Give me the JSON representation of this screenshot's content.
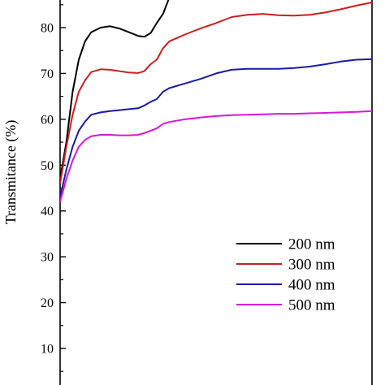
{
  "chart_data": {
    "type": "line",
    "title": "",
    "xlabel": "",
    "ylabel": "Transmitance (%)",
    "x_range": [
      0,
      100
    ],
    "ylim": [
      0,
      87
    ],
    "yticks": [
      10,
      20,
      30,
      40,
      50,
      60,
      70,
      80
    ],
    "grid": false,
    "legend_position": "bottom-right",
    "series": [
      {
        "name": "200 nm",
        "color": "#000000",
        "points": [
          [
            0,
            47
          ],
          [
            2,
            55
          ],
          [
            4,
            66
          ],
          [
            6,
            73
          ],
          [
            8,
            77
          ],
          [
            10,
            79
          ],
          [
            13,
            80
          ],
          [
            16,
            80.3
          ],
          [
            19,
            79.8
          ],
          [
            22,
            79
          ],
          [
            25,
            78.2
          ],
          [
            27,
            78
          ],
          [
            29,
            78.8
          ],
          [
            31,
            81
          ],
          [
            33,
            83
          ],
          [
            35,
            86.5
          ],
          [
            37,
            90
          ]
        ]
      },
      {
        "name": "300 nm",
        "color": "#cc1f1f",
        "points": [
          [
            0,
            46
          ],
          [
            2,
            54
          ],
          [
            4,
            61
          ],
          [
            6,
            66
          ],
          [
            8,
            68.5
          ],
          [
            10,
            70.3
          ],
          [
            13,
            70.9
          ],
          [
            16,
            70.8
          ],
          [
            19,
            70.5
          ],
          [
            22,
            70.2
          ],
          [
            25,
            70.1
          ],
          [
            27,
            70.5
          ],
          [
            29,
            72
          ],
          [
            31,
            73
          ],
          [
            33,
            75.5
          ],
          [
            35,
            77
          ],
          [
            40,
            78.5
          ],
          [
            45,
            79.8
          ],
          [
            50,
            81
          ],
          [
            55,
            82.3
          ],
          [
            60,
            82.8
          ],
          [
            65,
            83
          ],
          [
            70,
            82.7
          ],
          [
            75,
            82.6
          ],
          [
            80,
            82.8
          ],
          [
            85,
            83.3
          ],
          [
            90,
            84
          ],
          [
            95,
            84.8
          ],
          [
            100,
            85.5
          ]
        ]
      },
      {
        "name": "400 nm",
        "color": "#1a1aa8",
        "points": [
          [
            0,
            43
          ],
          [
            2,
            49
          ],
          [
            4,
            54
          ],
          [
            6,
            57.5
          ],
          [
            8,
            59.5
          ],
          [
            10,
            61
          ],
          [
            13,
            61.5
          ],
          [
            16,
            61.8
          ],
          [
            19,
            62
          ],
          [
            22,
            62.2
          ],
          [
            25,
            62.4
          ],
          [
            27,
            63
          ],
          [
            29,
            63.8
          ],
          [
            31,
            64.4
          ],
          [
            33,
            66
          ],
          [
            35,
            66.8
          ],
          [
            40,
            67.8
          ],
          [
            45,
            68.8
          ],
          [
            50,
            70
          ],
          [
            55,
            70.8
          ],
          [
            60,
            71
          ],
          [
            65,
            71
          ],
          [
            70,
            71
          ],
          [
            75,
            71.2
          ],
          [
            80,
            71.5
          ],
          [
            85,
            72
          ],
          [
            90,
            72.6
          ],
          [
            95,
            73
          ],
          [
            100,
            73.1
          ]
        ]
      },
      {
        "name": "500 nm",
        "color": "#d916d9",
        "points": [
          [
            0,
            42
          ],
          [
            2,
            47
          ],
          [
            4,
            51
          ],
          [
            6,
            54
          ],
          [
            8,
            55.5
          ],
          [
            10,
            56.3
          ],
          [
            13,
            56.6
          ],
          [
            16,
            56.6
          ],
          [
            19,
            56.5
          ],
          [
            22,
            56.5
          ],
          [
            25,
            56.6
          ],
          [
            27,
            57
          ],
          [
            29,
            57.5
          ],
          [
            31,
            58
          ],
          [
            33,
            59
          ],
          [
            35,
            59.4
          ],
          [
            40,
            60
          ],
          [
            45,
            60.4
          ],
          [
            50,
            60.7
          ],
          [
            55,
            60.9
          ],
          [
            60,
            61
          ],
          [
            65,
            61.1
          ],
          [
            70,
            61.2
          ],
          [
            75,
            61.2
          ],
          [
            80,
            61.3
          ],
          [
            85,
            61.4
          ],
          [
            90,
            61.5
          ],
          [
            95,
            61.6
          ],
          [
            100,
            61.8
          ]
        ]
      }
    ]
  }
}
